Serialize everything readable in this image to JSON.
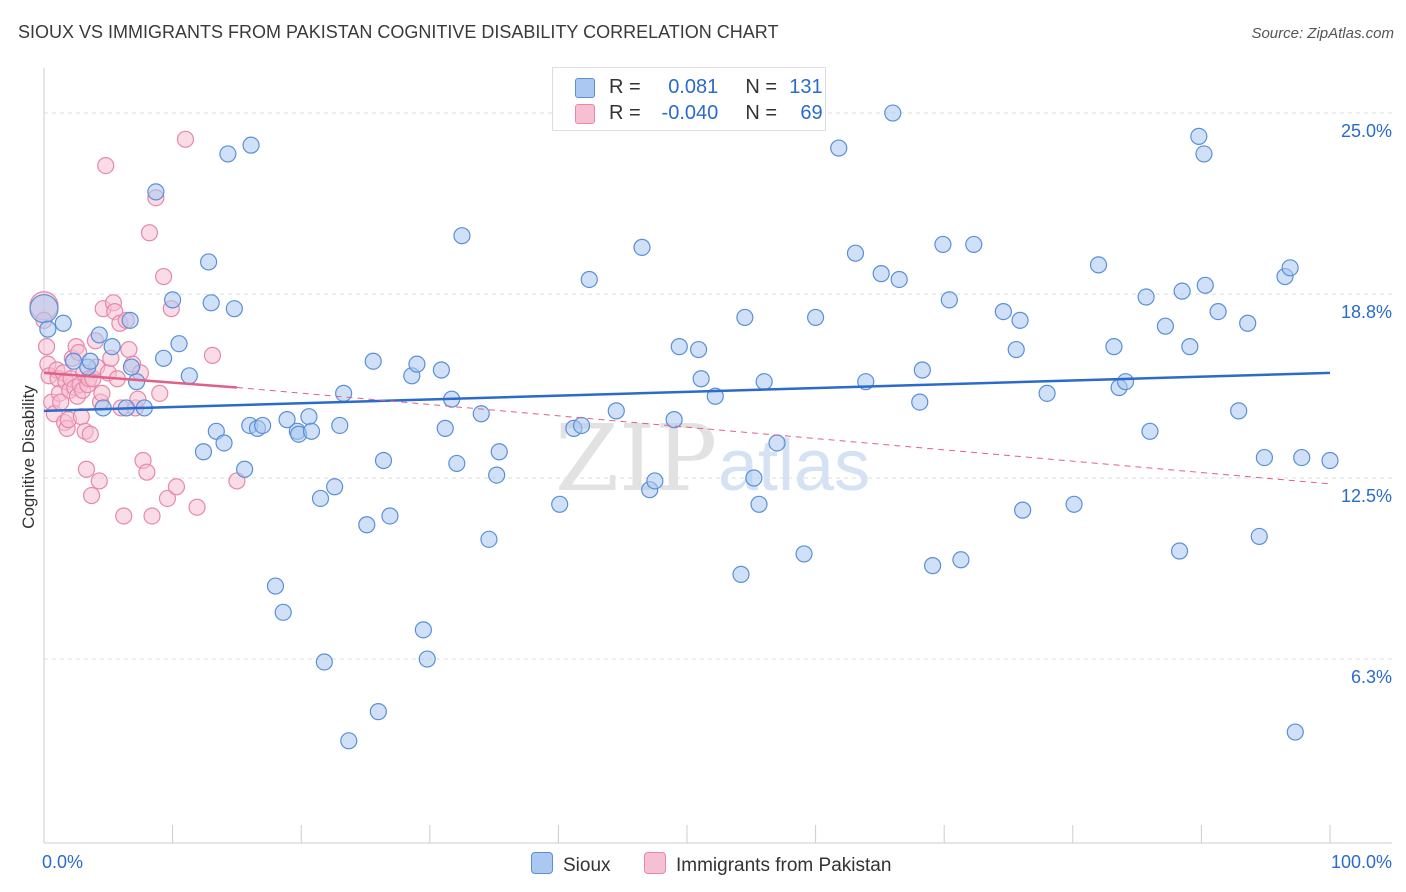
{
  "title": "SIOUX VS IMMIGRANTS FROM PAKISTAN COGNITIVE DISABILITY CORRELATION CHART",
  "source": "Source: ZipAtlas.com",
  "watermark": {
    "zip": "ZIP",
    "atlas": "atlas"
  },
  "colors": {
    "blue_fill": "#aac8f0",
    "blue_stroke": "#5a8fd8",
    "blue_line": "#2a6bcc",
    "pink_fill": "#f6c0d2",
    "pink_stroke": "#e888a8",
    "pink_line": "#e0608a",
    "grid": "#dddddd",
    "axis_text": "#2a6bcc"
  },
  "legend": {
    "rows": [
      {
        "r_label": "R =",
        "r_value": "0.081",
        "n_label": "N =",
        "n_value": "131"
      },
      {
        "r_label": "R =",
        "r_value": "-0.040",
        "n_label": "N =",
        "n_value": "69"
      }
    ]
  },
  "bottom_legend": {
    "series1": "Sioux",
    "series2": "Immigrants from Pakistan"
  },
  "chart_data": {
    "type": "scatter",
    "ylabel": "Cognitive Disability",
    "xlim": [
      0,
      100
    ],
    "ylim": [
      0,
      26.2
    ],
    "x_tick_labels": [
      "0.0%",
      "100.0%"
    ],
    "y_ticks": [
      {
        "value": 6.3,
        "label": "6.3%"
      },
      {
        "value": 12.5,
        "label": "12.5%"
      },
      {
        "value": 18.8,
        "label": "18.8%"
      },
      {
        "value": 25.0,
        "label": "25.0%"
      }
    ],
    "series": [
      {
        "name": "Sioux",
        "trend": {
          "x0": 0,
          "y0": 14.8,
          "x1": 100,
          "y1": 16.1
        },
        "points": [
          [
            0,
            18.3
          ],
          [
            0.3,
            17.6
          ],
          [
            1.5,
            17.8
          ],
          [
            2.3,
            16.5
          ],
          [
            3.4,
            16.3
          ],
          [
            3.6,
            16.5
          ],
          [
            4.3,
            17.4
          ],
          [
            5.3,
            17.0
          ],
          [
            6.7,
            17.9
          ],
          [
            4.6,
            14.9
          ],
          [
            6.4,
            14.9
          ],
          [
            7.8,
            14.9
          ],
          [
            7.2,
            15.8
          ],
          [
            6.8,
            16.3
          ],
          [
            9.3,
            16.6
          ],
          [
            8.7,
            22.3
          ],
          [
            10.0,
            18.6
          ],
          [
            10.5,
            17.1
          ],
          [
            11.3,
            16.0
          ],
          [
            12.4,
            13.4
          ],
          [
            12.8,
            19.9
          ],
          [
            13.0,
            18.5
          ],
          [
            13.4,
            14.1
          ],
          [
            14.0,
            13.7
          ],
          [
            14.3,
            23.6
          ],
          [
            14.8,
            18.3
          ],
          [
            15.6,
            12.8
          ],
          [
            16.0,
            14.3
          ],
          [
            16.1,
            23.9
          ],
          [
            16.6,
            14.2
          ],
          [
            17.0,
            14.3
          ],
          [
            18.0,
            8.8
          ],
          [
            18.6,
            7.9
          ],
          [
            18.9,
            14.5
          ],
          [
            19.7,
            14.1
          ],
          [
            19.8,
            14.0
          ],
          [
            20.6,
            14.6
          ],
          [
            20.8,
            14.1
          ],
          [
            21.5,
            11.8
          ],
          [
            21.8,
            6.2
          ],
          [
            22.6,
            12.2
          ],
          [
            23.0,
            14.3
          ],
          [
            23.3,
            15.4
          ],
          [
            23.7,
            3.5
          ],
          [
            25.1,
            10.9
          ],
          [
            25.6,
            16.5
          ],
          [
            26.0,
            4.5
          ],
          [
            26.4,
            13.1
          ],
          [
            26.9,
            11.2
          ],
          [
            28.6,
            16.0
          ],
          [
            29.0,
            16.4
          ],
          [
            29.5,
            7.3
          ],
          [
            29.8,
            6.3
          ],
          [
            30.9,
            16.2
          ],
          [
            31.2,
            14.2
          ],
          [
            31.7,
            15.2
          ],
          [
            32.1,
            13.0
          ],
          [
            32.5,
            20.8
          ],
          [
            34.0,
            14.7
          ],
          [
            34.6,
            10.4
          ],
          [
            35.2,
            12.6
          ],
          [
            35.4,
            13.4
          ],
          [
            40.1,
            11.6
          ],
          [
            41.2,
            14.2
          ],
          [
            41.8,
            14.3
          ],
          [
            42.4,
            19.3
          ],
          [
            44.5,
            14.8
          ],
          [
            46.5,
            20.4
          ],
          [
            47.1,
            12.1
          ],
          [
            47.5,
            12.4
          ],
          [
            49.0,
            14.5
          ],
          [
            49.4,
            17.0
          ],
          [
            50.9,
            16.9
          ],
          [
            51.1,
            15.9
          ],
          [
            52.2,
            15.3
          ],
          [
            54.2,
            9.2
          ],
          [
            54.5,
            18.0
          ],
          [
            55.2,
            12.5
          ],
          [
            55.6,
            11.6
          ],
          [
            56.0,
            15.8
          ],
          [
            57.0,
            13.7
          ],
          [
            59.1,
            9.9
          ],
          [
            60.0,
            18.0
          ],
          [
            61.8,
            23.8
          ],
          [
            63.1,
            20.2
          ],
          [
            63.9,
            15.8
          ],
          [
            65.1,
            19.5
          ],
          [
            66.0,
            25.0
          ],
          [
            66.5,
            19.3
          ],
          [
            68.1,
            15.1
          ],
          [
            68.3,
            16.2
          ],
          [
            69.1,
            9.5
          ],
          [
            69.9,
            20.5
          ],
          [
            70.4,
            18.6
          ],
          [
            71.3,
            9.7
          ],
          [
            72.3,
            20.5
          ],
          [
            74.6,
            18.2
          ],
          [
            75.6,
            16.9
          ],
          [
            75.9,
            17.9
          ],
          [
            76.1,
            11.4
          ],
          [
            78.0,
            15.4
          ],
          [
            80.1,
            11.6
          ],
          [
            82.0,
            19.8
          ],
          [
            83.2,
            17.0
          ],
          [
            83.6,
            15.6
          ],
          [
            84.1,
            15.8
          ],
          [
            85.7,
            18.7
          ],
          [
            86.0,
            14.1
          ],
          [
            87.2,
            17.7
          ],
          [
            88.3,
            10.0
          ],
          [
            88.5,
            18.9
          ],
          [
            89.1,
            17.0
          ],
          [
            89.8,
            24.2
          ],
          [
            90.2,
            23.6
          ],
          [
            90.3,
            19.1
          ],
          [
            91.3,
            18.2
          ],
          [
            92.9,
            14.8
          ],
          [
            93.6,
            17.8
          ],
          [
            94.5,
            10.5
          ],
          [
            94.9,
            13.2
          ],
          [
            96.5,
            19.4
          ],
          [
            96.9,
            19.7
          ],
          [
            97.3,
            3.8
          ],
          [
            97.8,
            13.2
          ],
          [
            100,
            13.1
          ]
        ]
      },
      {
        "name": "Immigrants from Pakistan",
        "trend": {
          "x0": 0,
          "y0": 16.1,
          "x1": 15,
          "y1": 15.6,
          "dash_x1": 100,
          "dash_y1": 12.3
        },
        "points": [
          [
            0,
            18.4
          ],
          [
            0,
            17.9
          ],
          [
            0.2,
            17.0
          ],
          [
            0.3,
            16.4
          ],
          [
            0.4,
            16.0
          ],
          [
            0.6,
            15.1
          ],
          [
            0.8,
            14.7
          ],
          [
            1.0,
            16.2
          ],
          [
            1.1,
            15.9
          ],
          [
            1.2,
            15.4
          ],
          [
            1.3,
            15.1
          ],
          [
            1.5,
            16.1
          ],
          [
            1.6,
            14.4
          ],
          [
            1.7,
            15.8
          ],
          [
            1.8,
            14.2
          ],
          [
            1.9,
            14.5
          ],
          [
            2.0,
            15.5
          ],
          [
            2.1,
            15.9
          ],
          [
            2.2,
            16.6
          ],
          [
            2.4,
            15.6
          ],
          [
            2.5,
            17.0
          ],
          [
            2.6,
            15.3
          ],
          [
            2.7,
            16.8
          ],
          [
            2.8,
            15.7
          ],
          [
            2.9,
            14.6
          ],
          [
            3.0,
            15.5
          ],
          [
            3.1,
            16.1
          ],
          [
            3.2,
            14.1
          ],
          [
            3.3,
            12.8
          ],
          [
            3.4,
            15.7
          ],
          [
            3.5,
            15.9
          ],
          [
            3.6,
            14.0
          ],
          [
            3.7,
            11.9
          ],
          [
            3.8,
            15.9
          ],
          [
            4.0,
            17.2
          ],
          [
            4.1,
            16.3
          ],
          [
            4.3,
            12.4
          ],
          [
            4.4,
            15.1
          ],
          [
            4.5,
            15.4
          ],
          [
            4.6,
            18.3
          ],
          [
            4.8,
            23.2
          ],
          [
            5.0,
            16.1
          ],
          [
            5.2,
            16.6
          ],
          [
            5.4,
            18.5
          ],
          [
            5.5,
            18.2
          ],
          [
            5.7,
            15.9
          ],
          [
            5.9,
            17.8
          ],
          [
            6.0,
            14.9
          ],
          [
            6.2,
            11.2
          ],
          [
            6.4,
            17.9
          ],
          [
            6.6,
            16.9
          ],
          [
            6.9,
            16.4
          ],
          [
            7.1,
            14.9
          ],
          [
            7.3,
            15.2
          ],
          [
            7.5,
            16.1
          ],
          [
            7.7,
            13.1
          ],
          [
            8.0,
            12.7
          ],
          [
            8.2,
            20.9
          ],
          [
            8.4,
            11.2
          ],
          [
            8.7,
            22.1
          ],
          [
            9.0,
            15.4
          ],
          [
            9.3,
            19.4
          ],
          [
            9.6,
            11.8
          ],
          [
            9.9,
            18.3
          ],
          [
            10.3,
            12.2
          ],
          [
            11.0,
            24.1
          ],
          [
            11.9,
            11.5
          ],
          [
            13.1,
            16.7
          ],
          [
            15.0,
            12.4
          ]
        ]
      }
    ]
  }
}
